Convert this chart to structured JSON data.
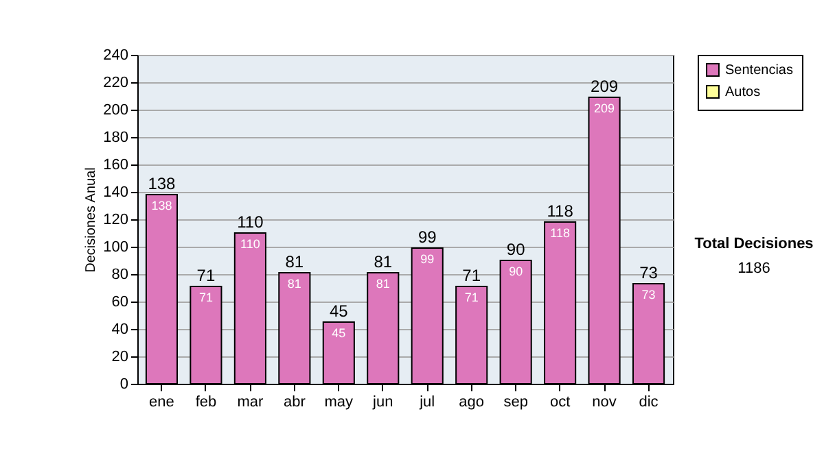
{
  "chart_data": {
    "type": "bar",
    "ylabel": "Decisiones Anual",
    "categories": [
      "ene",
      "feb",
      "mar",
      "abr",
      "may",
      "jun",
      "jul",
      "ago",
      "sep",
      "oct",
      "nov",
      "dic"
    ],
    "series": [
      {
        "name": "Sentencias",
        "color": "#dd77bb",
        "values": [
          138,
          71,
          110,
          81,
          45,
          81,
          99,
          71,
          90,
          118,
          209,
          73
        ]
      },
      {
        "name": "Autos",
        "color": "#ffff99",
        "values": [
          null,
          null,
          null,
          null,
          null,
          null,
          null,
          null,
          null,
          null,
          null,
          null
        ]
      }
    ],
    "stacked": true,
    "data_labels": true,
    "totals": [
      "138",
      "71",
      "110",
      "81",
      "45",
      "81",
      "99",
      "71",
      "90",
      "118",
      "209",
      "73"
    ],
    "ylim": [
      0,
      240
    ],
    "yticks": [
      0,
      20,
      40,
      60,
      80,
      100,
      120,
      140,
      160,
      180,
      200,
      220,
      240
    ],
    "grid": "y",
    "legend": "right",
    "annotations": [
      "Total Decisiones",
      "1186"
    ]
  }
}
